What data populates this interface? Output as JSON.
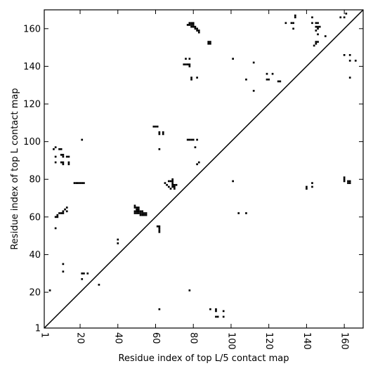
{
  "chart_data": {
    "type": "scatter",
    "xlabel": "Residue index of top L/5 contact map",
    "ylabel": "Residue index of top L contact map",
    "xlim": [
      1,
      170
    ],
    "ylim": [
      1,
      170
    ],
    "xticks": [
      1,
      20,
      40,
      60,
      80,
      100,
      120,
      140,
      160
    ],
    "yticks": [
      1,
      20,
      40,
      60,
      80,
      100,
      120,
      140,
      160
    ],
    "grid": false,
    "diagonal": {
      "from": [
        1,
        1
      ],
      "to": [
        170,
        170
      ]
    },
    "marker_color": "#000000",
    "points": [
      [
        4,
        21
      ],
      [
        6,
        96
      ],
      [
        7,
        97
      ],
      [
        7,
        92
      ],
      [
        7,
        89
      ],
      [
        7,
        60
      ],
      [
        8,
        60
      ],
      [
        7,
        54
      ],
      [
        8,
        61
      ],
      [
        9,
        62
      ],
      [
        10,
        62
      ],
      [
        11,
        62
      ],
      [
        11,
        63
      ],
      [
        12,
        64
      ],
      [
        13,
        65
      ],
      [
        13,
        63
      ],
      [
        9,
        96
      ],
      [
        10,
        96
      ],
      [
        10,
        93
      ],
      [
        11,
        93
      ],
      [
        11,
        92
      ],
      [
        10,
        89
      ],
      [
        11,
        89
      ],
      [
        11,
        88
      ],
      [
        11,
        35
      ],
      [
        11,
        31
      ],
      [
        13,
        92
      ],
      [
        14,
        92
      ],
      [
        14,
        89
      ],
      [
        14,
        88
      ],
      [
        17,
        78
      ],
      [
        18,
        78
      ],
      [
        19,
        78
      ],
      [
        20,
        78
      ],
      [
        21,
        78
      ],
      [
        22,
        78
      ],
      [
        21,
        101
      ],
      [
        21,
        30
      ],
      [
        22,
        30
      ],
      [
        24,
        30
      ],
      [
        21,
        27
      ],
      [
        30,
        24
      ],
      [
        40,
        48
      ],
      [
        40,
        46
      ],
      [
        49,
        66
      ],
      [
        49,
        65
      ],
      [
        49,
        63
      ],
      [
        49,
        62
      ],
      [
        50,
        65
      ],
      [
        50,
        64
      ],
      [
        50,
        63
      ],
      [
        50,
        62
      ],
      [
        51,
        65
      ],
      [
        51,
        64
      ],
      [
        51,
        63
      ],
      [
        51,
        62
      ],
      [
        52,
        63
      ],
      [
        52,
        62
      ],
      [
        52,
        61
      ],
      [
        53,
        63
      ],
      [
        53,
        62
      ],
      [
        53,
        61
      ],
      [
        54,
        62
      ],
      [
        54,
        61
      ],
      [
        55,
        62
      ],
      [
        55,
        61
      ],
      [
        59,
        108
      ],
      [
        60,
        108
      ],
      [
        61,
        108
      ],
      [
        62,
        105
      ],
      [
        62,
        104
      ],
      [
        64,
        105
      ],
      [
        64,
        104
      ],
      [
        62,
        96
      ],
      [
        61,
        55
      ],
      [
        62,
        55
      ],
      [
        62,
        54
      ],
      [
        62,
        53
      ],
      [
        62,
        52
      ],
      [
        62,
        11
      ],
      [
        65,
        78
      ],
      [
        66,
        77
      ],
      [
        67,
        76
      ],
      [
        67,
        79
      ],
      [
        68,
        79
      ],
      [
        69,
        80
      ],
      [
        69,
        79
      ],
      [
        69,
        78
      ],
      [
        69,
        77
      ],
      [
        69,
        76
      ],
      [
        70,
        77
      ],
      [
        70,
        76
      ],
      [
        71,
        77
      ],
      [
        68,
        75
      ],
      [
        70,
        75
      ],
      [
        75,
        141
      ],
      [
        76,
        141
      ],
      [
        77,
        141
      ],
      [
        78,
        141
      ],
      [
        76,
        144
      ],
      [
        78,
        144
      ],
      [
        78,
        140
      ],
      [
        79,
        134
      ],
      [
        79,
        133
      ],
      [
        82,
        134
      ],
      [
        77,
        162
      ],
      [
        78,
        162
      ],
      [
        78,
        163
      ],
      [
        79,
        163
      ],
      [
        79,
        162
      ],
      [
        79,
        161
      ],
      [
        80,
        163
      ],
      [
        80,
        162
      ],
      [
        80,
        161
      ],
      [
        81,
        161
      ],
      [
        81,
        160
      ],
      [
        82,
        160
      ],
      [
        82,
        159
      ],
      [
        83,
        159
      ],
      [
        83,
        158
      ],
      [
        88,
        153
      ],
      [
        88,
        152
      ],
      [
        89,
        153
      ],
      [
        89,
        152
      ],
      [
        77,
        101
      ],
      [
        78,
        101
      ],
      [
        79,
        101
      ],
      [
        80,
        101
      ],
      [
        82,
        101
      ],
      [
        81,
        97
      ],
      [
        82,
        88
      ],
      [
        83,
        89
      ],
      [
        78,
        21
      ],
      [
        89,
        11
      ],
      [
        92,
        11
      ],
      [
        92,
        10
      ],
      [
        92,
        7
      ],
      [
        93,
        7
      ],
      [
        96,
        10
      ],
      [
        96,
        7
      ],
      [
        101,
        144
      ],
      [
        101,
        79
      ],
      [
        104,
        62
      ],
      [
        108,
        62
      ],
      [
        108,
        133
      ],
      [
        112,
        142
      ],
      [
        112,
        127
      ],
      [
        119,
        136
      ],
      [
        119,
        133
      ],
      [
        120,
        133
      ],
      [
        122,
        136
      ],
      [
        125,
        132
      ],
      [
        126,
        132
      ],
      [
        129,
        163
      ],
      [
        132,
        163
      ],
      [
        133,
        163
      ],
      [
        133,
        160
      ],
      [
        134,
        167
      ],
      [
        134,
        166
      ],
      [
        140,
        76
      ],
      [
        140,
        75
      ],
      [
        143,
        78
      ],
      [
        143,
        76
      ],
      [
        143,
        166
      ],
      [
        143,
        163
      ],
      [
        145,
        163
      ],
      [
        145,
        161
      ],
      [
        146,
        163
      ],
      [
        146,
        161
      ],
      [
        146,
        160
      ],
      [
        145,
        159
      ],
      [
        146,
        157
      ],
      [
        147,
        161
      ],
      [
        145,
        153
      ],
      [
        145,
        152
      ],
      [
        146,
        153
      ],
      [
        144,
        151
      ],
      [
        150,
        156
      ],
      [
        158,
        166
      ],
      [
        160,
        166
      ],
      [
        161,
        168
      ],
      [
        160,
        146
      ],
      [
        160,
        81
      ],
      [
        160,
        80
      ],
      [
        160,
        79
      ],
      [
        162,
        79
      ],
      [
        162,
        78
      ],
      [
        163,
        79
      ],
      [
        163,
        78
      ],
      [
        163,
        146
      ],
      [
        163,
        143
      ],
      [
        163,
        134
      ],
      [
        166,
        143
      ]
    ]
  }
}
